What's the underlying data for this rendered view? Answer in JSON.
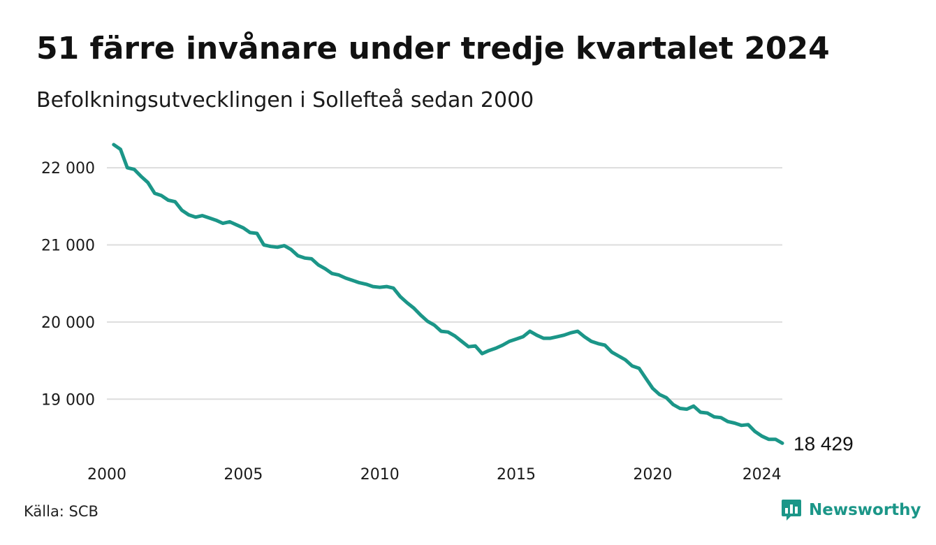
{
  "header": {
    "title": "51 färre invånare under tredje kvartalet 2024",
    "subtitle": "Befolkningsutvecklingen i Sollefteå sedan 2000"
  },
  "footer": {
    "source": "Källa: SCB",
    "brand": "Newsworthy",
    "brand_icon": "newsworthy-logo-icon"
  },
  "colors": {
    "line": "#1b9688",
    "grid": "#dddddd",
    "brand": "#1b9688"
  },
  "chart_data": {
    "type": "line",
    "title": "51 färre invånare under tredje kvartalet 2024",
    "subtitle": "Befolkningsutvecklingen i Sollefteå sedan 2000",
    "xlabel": "",
    "ylabel": "",
    "xlim": [
      2000,
      2024.75
    ],
    "ylim": [
      18350,
      22400
    ],
    "grid": true,
    "legend": "none",
    "y_ticks": [
      {
        "value": 19000,
        "label": "19 000"
      },
      {
        "value": 20000,
        "label": "20 000"
      },
      {
        "value": 21000,
        "label": "21 000"
      },
      {
        "value": 22000,
        "label": "22 000"
      }
    ],
    "x_ticks": [
      {
        "value": 2000,
        "label": "2000"
      },
      {
        "value": 2005,
        "label": "2005"
      },
      {
        "value": 2010,
        "label": "2010"
      },
      {
        "value": 2015,
        "label": "2015"
      },
      {
        "value": 2020,
        "label": "2020"
      },
      {
        "value": 2024,
        "label": "2024"
      }
    ],
    "end_label": "18 429",
    "series": [
      {
        "points": [
          [
            2000.25,
            22300
          ],
          [
            2000.5,
            22240
          ],
          [
            2000.75,
            22000
          ],
          [
            2001,
            21980
          ],
          [
            2001.25,
            21890
          ],
          [
            2001.5,
            21810
          ],
          [
            2001.75,
            21670
          ],
          [
            2002,
            21640
          ],
          [
            2002.25,
            21580
          ],
          [
            2002.5,
            21560
          ],
          [
            2002.75,
            21450
          ],
          [
            2003,
            21390
          ],
          [
            2003.25,
            21360
          ],
          [
            2003.5,
            21380
          ],
          [
            2003.75,
            21350
          ],
          [
            2004,
            21320
          ],
          [
            2004.25,
            21280
          ],
          [
            2004.5,
            21300
          ],
          [
            2004.75,
            21260
          ],
          [
            2005,
            21220
          ],
          [
            2005.25,
            21160
          ],
          [
            2005.5,
            21150
          ],
          [
            2005.75,
            21000
          ],
          [
            2006,
            20980
          ],
          [
            2006.25,
            20970
          ],
          [
            2006.5,
            20990
          ],
          [
            2006.75,
            20940
          ],
          [
            2007,
            20860
          ],
          [
            2007.25,
            20830
          ],
          [
            2007.5,
            20820
          ],
          [
            2007.75,
            20740
          ],
          [
            2008,
            20690
          ],
          [
            2008.25,
            20630
          ],
          [
            2008.5,
            20610
          ],
          [
            2008.75,
            20570
          ],
          [
            2009,
            20540
          ],
          [
            2009.25,
            20510
          ],
          [
            2009.5,
            20490
          ],
          [
            2009.75,
            20460
          ],
          [
            2010,
            20450
          ],
          [
            2010.25,
            20460
          ],
          [
            2010.5,
            20440
          ],
          [
            2010.75,
            20330
          ],
          [
            2011,
            20250
          ],
          [
            2011.25,
            20180
          ],
          [
            2011.5,
            20090
          ],
          [
            2011.75,
            20010
          ],
          [
            2012,
            19960
          ],
          [
            2012.25,
            19880
          ],
          [
            2012.5,
            19870
          ],
          [
            2012.75,
            19820
          ],
          [
            2013,
            19750
          ],
          [
            2013.25,
            19680
          ],
          [
            2013.5,
            19690
          ],
          [
            2013.75,
            19590
          ],
          [
            2014,
            19630
          ],
          [
            2014.25,
            19660
          ],
          [
            2014.5,
            19700
          ],
          [
            2014.75,
            19750
          ],
          [
            2015,
            19780
          ],
          [
            2015.25,
            19810
          ],
          [
            2015.5,
            19880
          ],
          [
            2015.75,
            19830
          ],
          [
            2016,
            19790
          ],
          [
            2016.25,
            19790
          ],
          [
            2016.5,
            19810
          ],
          [
            2016.75,
            19830
          ],
          [
            2017,
            19860
          ],
          [
            2017.25,
            19880
          ],
          [
            2017.5,
            19810
          ],
          [
            2017.75,
            19750
          ],
          [
            2018,
            19720
          ],
          [
            2018.25,
            19700
          ],
          [
            2018.5,
            19610
          ],
          [
            2018.75,
            19560
          ],
          [
            2019,
            19510
          ],
          [
            2019.25,
            19430
          ],
          [
            2019.5,
            19400
          ],
          [
            2019.75,
            19270
          ],
          [
            2020,
            19140
          ],
          [
            2020.25,
            19060
          ],
          [
            2020.5,
            19020
          ],
          [
            2020.75,
            18930
          ],
          [
            2021,
            18880
          ],
          [
            2021.25,
            18870
          ],
          [
            2021.5,
            18910
          ],
          [
            2021.75,
            18830
          ],
          [
            2022,
            18820
          ],
          [
            2022.25,
            18770
          ],
          [
            2022.5,
            18760
          ],
          [
            2022.75,
            18710
          ],
          [
            2023,
            18690
          ],
          [
            2023.25,
            18660
          ],
          [
            2023.5,
            18670
          ],
          [
            2023.75,
            18580
          ],
          [
            2024,
            18520
          ],
          [
            2024.25,
            18480
          ],
          [
            2024.5,
            18480
          ],
          [
            2024.75,
            18429
          ]
        ]
      }
    ]
  }
}
